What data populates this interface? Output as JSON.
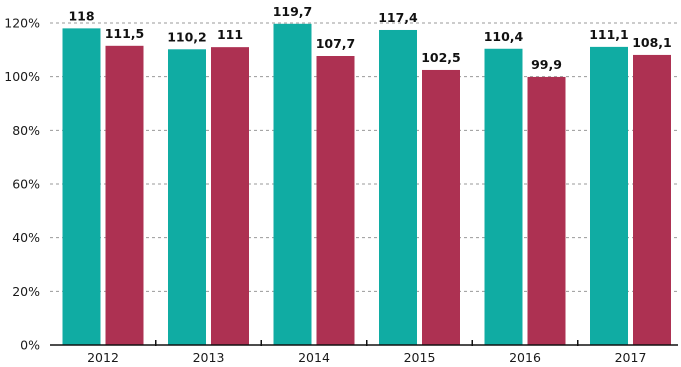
{
  "chart_data": {
    "type": "bar",
    "categories": [
      "2012",
      "2013",
      "2014",
      "2015",
      "2016",
      "2017"
    ],
    "series": [
      {
        "values": [
          118,
          110.2,
          119.7,
          117.4,
          110.4,
          111.1
        ],
        "labels": [
          "118",
          "110,2",
          "119,7",
          "117,4",
          "110,4",
          "111,1"
        ],
        "color": "#10ACA3"
      },
      {
        "values": [
          111.5,
          111,
          107.7,
          102.5,
          99.9,
          108.1
        ],
        "labels": [
          "111,5",
          "111",
          "107,7",
          "102,5",
          "99,9",
          "108,1"
        ],
        "color": "#AD3152"
      }
    ],
    "y_ticks": [
      0,
      20,
      40,
      60,
      80,
      100,
      120
    ],
    "y_tick_labels": [
      "0%",
      "20%",
      "40%",
      "60%",
      "80%",
      "100%",
      "120%"
    ],
    "ylim": [
      0,
      120
    ],
    "grid": "horizontal dashed",
    "legend": "none"
  }
}
